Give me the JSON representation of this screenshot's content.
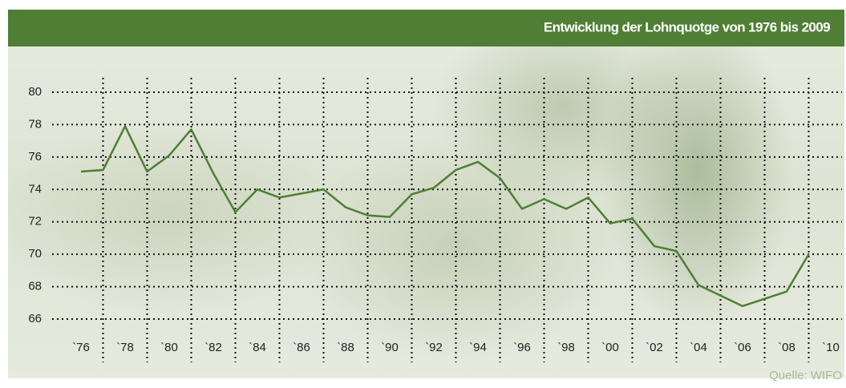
{
  "chart_data": {
    "type": "line",
    "title": "Entwicklung der Lohnquotge von 1976 bis 2009",
    "source": "Quelle: WIFO",
    "x": [
      1976,
      1977,
      1978,
      1979,
      1980,
      1981,
      1982,
      1983,
      1984,
      1985,
      1987,
      1988,
      1989,
      1990,
      1991,
      1992,
      1993,
      1994,
      1995,
      1996,
      1997,
      1998,
      1999,
      2000,
      2001,
      2002,
      2003,
      2004,
      2006,
      2008,
      2009
    ],
    "series": [
      {
        "name": "Lohnquote",
        "color": "#4e7f34",
        "values": [
          75.1,
          75.2,
          77.9,
          75.1,
          76.1,
          77.7,
          75.0,
          72.6,
          74.0,
          73.5,
          74.0,
          72.9,
          72.4,
          72.3,
          73.7,
          74.1,
          75.2,
          75.7,
          74.7,
          72.8,
          73.4,
          72.8,
          73.5,
          71.9,
          72.2,
          70.5,
          70.2,
          68.1,
          66.8,
          67.7,
          70.0
        ]
      }
    ],
    "xlim": [
      1976,
      2010
    ],
    "xticks": [
      {
        "value": 1976,
        "label": "`76"
      },
      {
        "value": 1978,
        "label": "`78"
      },
      {
        "value": 1980,
        "label": "`80"
      },
      {
        "value": 1982,
        "label": "`82"
      },
      {
        "value": 1984,
        "label": "`84"
      },
      {
        "value": 1986,
        "label": "`86"
      },
      {
        "value": 1988,
        "label": "`88"
      },
      {
        "value": 1990,
        "label": "`90"
      },
      {
        "value": 1992,
        "label": "`92"
      },
      {
        "value": 1994,
        "label": "`94"
      },
      {
        "value": 1996,
        "label": "`96"
      },
      {
        "value": 1998,
        "label": "`98"
      },
      {
        "value": 2000,
        "label": "`00"
      },
      {
        "value": 2002,
        "label": "`02"
      },
      {
        "value": 2004,
        "label": "`04"
      },
      {
        "value": 2006,
        "label": "`06"
      },
      {
        "value": 2008,
        "label": "`08"
      },
      {
        "value": 2010,
        "label": "`10"
      }
    ],
    "ylim": [
      66,
      80
    ],
    "yticks": [
      66,
      68,
      70,
      72,
      74,
      76,
      78,
      80
    ],
    "grid": true
  }
}
